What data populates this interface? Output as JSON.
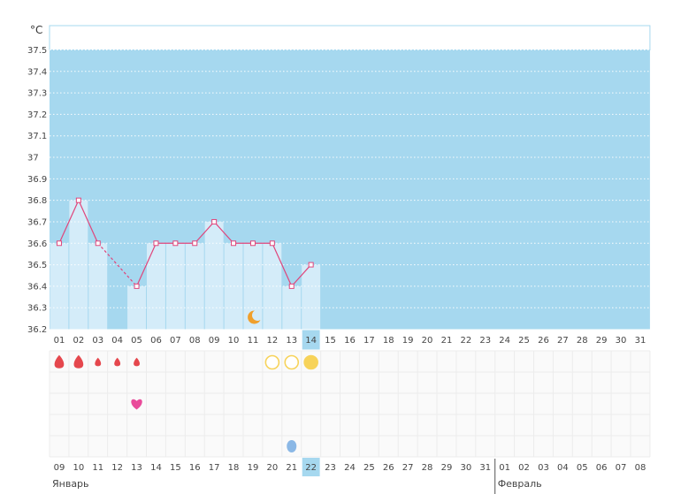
{
  "chart_data": {
    "type": "line",
    "title": "",
    "y_unit": "°C",
    "ylim": [
      36.2,
      37.5
    ],
    "y_ticks": [
      "37.5",
      "37.4",
      "37.3",
      "37.2",
      "37.1",
      "37",
      "36.9",
      "36.8",
      "36.7",
      "36.6",
      "36.5",
      "36.4",
      "36.3",
      "36.2"
    ],
    "cycle_days": [
      "01",
      "02",
      "03",
      "04",
      "05",
      "06",
      "07",
      "08",
      "09",
      "10",
      "11",
      "12",
      "13",
      "14",
      "15",
      "16",
      "17",
      "18",
      "19",
      "20",
      "21",
      "22",
      "23",
      "24",
      "25",
      "26",
      "27",
      "28",
      "29",
      "30",
      "31"
    ],
    "current_day": "14",
    "temperatures": [
      36.6,
      36.8,
      36.6,
      null,
      36.4,
      36.6,
      36.6,
      36.6,
      36.7,
      36.6,
      36.6,
      36.6,
      36.4,
      36.5
    ],
    "interpolated_segment": [
      2,
      4
    ],
    "marker_rows": {
      "period": [
        {
          "day_index": 0,
          "kind": "drop-large"
        },
        {
          "day_index": 1,
          "kind": "drop-large"
        },
        {
          "day_index": 2,
          "kind": "drop-small"
        },
        {
          "day_index": 3,
          "kind": "drop-small"
        },
        {
          "day_index": 4,
          "kind": "drop-small"
        }
      ],
      "fertility": [
        {
          "day_index": 11,
          "kind": "circle-outline"
        },
        {
          "day_index": 12,
          "kind": "circle-outline"
        },
        {
          "day_index": 13,
          "kind": "circle-filled"
        }
      ],
      "ovulation_day_index": 10,
      "intercourse_day_index": 4,
      "discharge_day_index": 12
    },
    "dates": [
      {
        "label": "09",
        "weekend": false
      },
      {
        "label": "10",
        "weekend": false
      },
      {
        "label": "11",
        "weekend": true
      },
      {
        "label": "12",
        "weekend": true
      },
      {
        "label": "13",
        "weekend": false
      },
      {
        "label": "14",
        "weekend": false
      },
      {
        "label": "15",
        "weekend": false
      },
      {
        "label": "16",
        "weekend": false
      },
      {
        "label": "17",
        "weekend": false
      },
      {
        "label": "18",
        "weekend": true
      },
      {
        "label": "19",
        "weekend": true
      },
      {
        "label": "20",
        "weekend": false
      },
      {
        "label": "21",
        "weekend": false
      },
      {
        "label": "22",
        "weekend": false
      },
      {
        "label": "23",
        "weekend": false
      },
      {
        "label": "24",
        "weekend": false
      },
      {
        "label": "25",
        "weekend": true
      },
      {
        "label": "26",
        "weekend": true
      },
      {
        "label": "27",
        "weekend": false
      },
      {
        "label": "28",
        "weekend": false
      },
      {
        "label": "29",
        "weekend": false
      },
      {
        "label": "30",
        "weekend": false
      },
      {
        "label": "31",
        "weekend": false
      },
      {
        "label": "01",
        "weekend": true
      },
      {
        "label": "02",
        "weekend": true
      },
      {
        "label": "03",
        "weekend": false
      },
      {
        "label": "04",
        "weekend": false
      },
      {
        "label": "05",
        "weekend": false
      },
      {
        "label": "06",
        "weekend": false
      },
      {
        "label": "07",
        "weekend": false
      },
      {
        "label": "08",
        "weekend": true
      }
    ],
    "current_date": "22",
    "months": [
      {
        "label": "Январь",
        "start_index": 0
      },
      {
        "label": "Февраль",
        "start_index": 23
      }
    ],
    "colors": {
      "plot_background": "#a6d8ef",
      "bar_fill": "#d4ecf9",
      "line": "#e0457b",
      "weekend_text": "#e0457b",
      "period_drop": "#e5474d",
      "fertile_circle": "#f7d35a",
      "ovulation_moon": "#f0a02c",
      "intercourse_heart": "#e94b9a",
      "discharge_drop": "#8bb8e6",
      "highlight": "#a6d8ef"
    },
    "grid": true
  }
}
